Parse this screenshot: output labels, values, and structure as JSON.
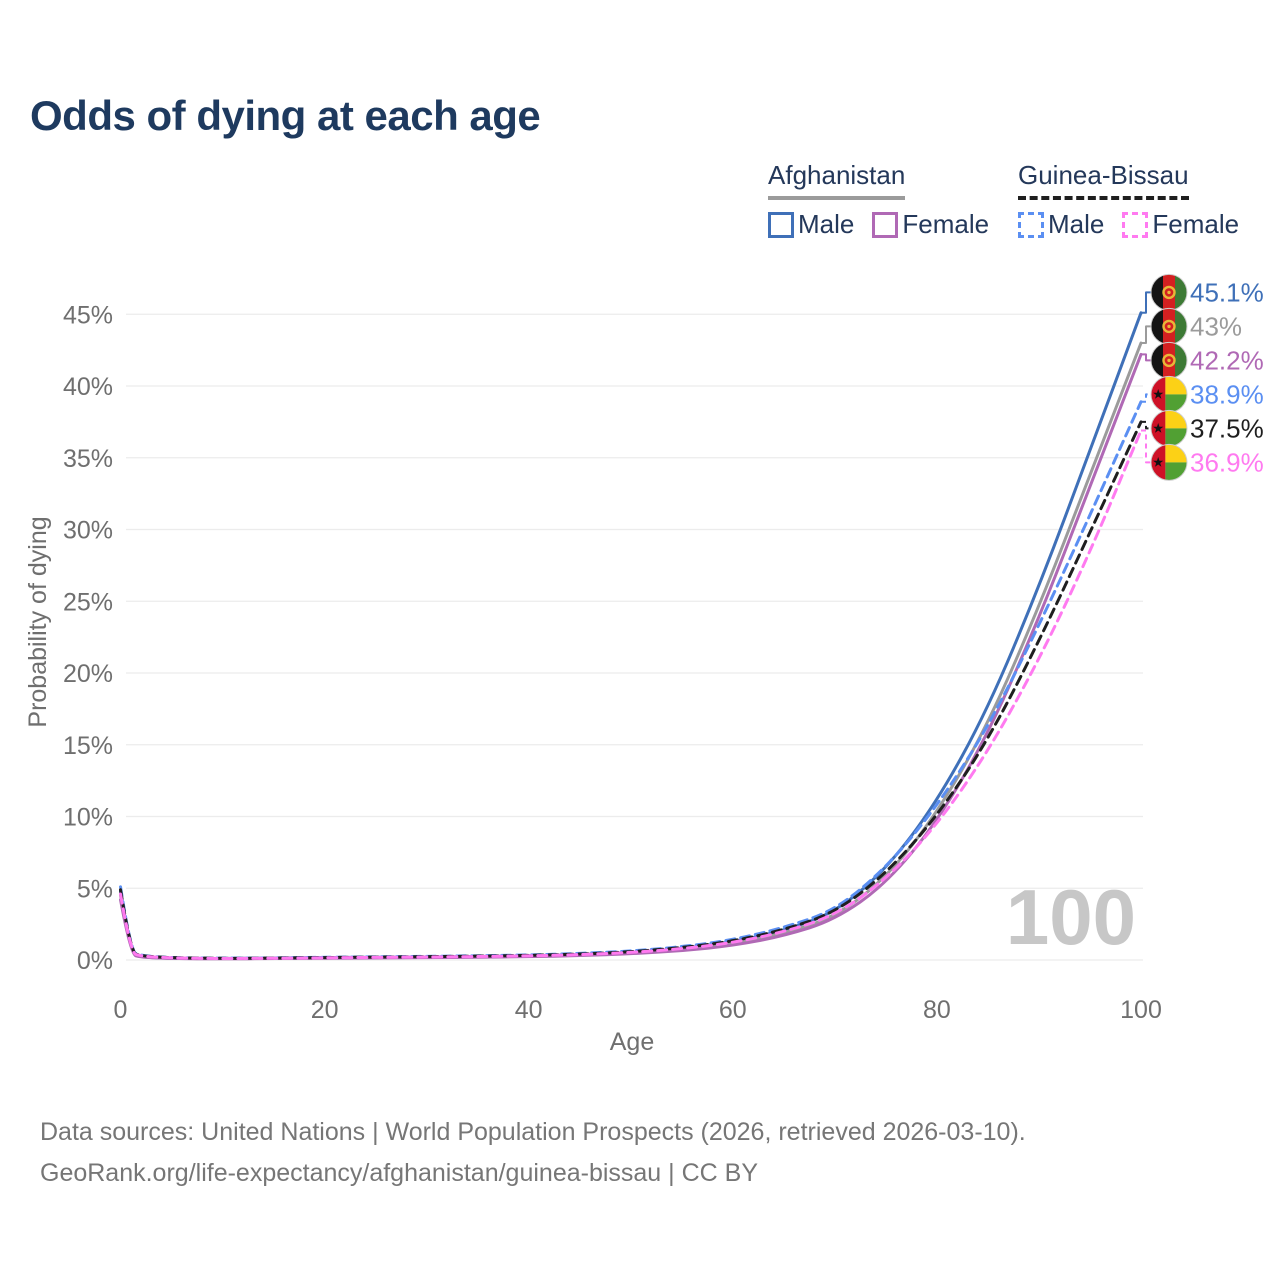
{
  "title": "Odds of dying at each age",
  "legend": {
    "afghanistan": {
      "label": "Afghanistan",
      "male_label": "Male",
      "female_label": "Female"
    },
    "guinea_bissau": {
      "label": "Guinea-Bissau",
      "male_label": "Male",
      "female_label": "Female"
    }
  },
  "footer": {
    "line1": "Data sources: United Nations | World Population Prospects (2026, retrieved 2026-03-10).",
    "line2": "GeoRank.org/life-expectancy/afghanistan/guinea-bissau | CC BY"
  },
  "chart_data": {
    "type": "line",
    "title": "Odds of dying at each age",
    "xlabel": "Age",
    "ylabel": "Probability of dying",
    "x_ticks": [
      0,
      20,
      40,
      60,
      80,
      100
    ],
    "y_ticks": [
      0,
      5,
      10,
      15,
      20,
      25,
      30,
      35,
      40,
      45
    ],
    "y_tick_suffix": "%",
    "xlim": [
      0,
      100
    ],
    "ylim": [
      0,
      47
    ],
    "grid": "horizontal",
    "legend_position": "top-right",
    "watermark": "100",
    "ages": [
      0,
      1,
      2,
      5,
      10,
      15,
      20,
      25,
      30,
      35,
      40,
      45,
      50,
      55,
      60,
      65,
      70,
      75,
      80,
      85,
      90,
      95,
      100
    ],
    "series": [
      {
        "id": "afghanistan-male",
        "name": "Afghanistan Male",
        "country": "afghanistan",
        "sex": "Male",
        "style": "solid",
        "color": "#3f70b8",
        "end_label": "45.1%",
        "end_value": 45.1,
        "values": [
          4.8,
          0.45,
          0.22,
          0.12,
          0.1,
          0.13,
          0.17,
          0.19,
          0.21,
          0.24,
          0.29,
          0.37,
          0.52,
          0.78,
          1.25,
          2.05,
          3.3,
          6.3,
          11.0,
          17.5,
          26.0,
          35.5,
          45.1
        ]
      },
      {
        "id": "afghanistan-both",
        "name": "Afghanistan Both sexes",
        "country": "afghanistan",
        "sex": "Both",
        "style": "solid",
        "color": "#9b9b9b",
        "end_label": "43%",
        "end_value": 43.0,
        "values": [
          4.5,
          0.42,
          0.2,
          0.11,
          0.09,
          0.11,
          0.14,
          0.16,
          0.18,
          0.21,
          0.26,
          0.33,
          0.47,
          0.71,
          1.12,
          1.85,
          3.0,
          5.7,
          10.2,
          16.4,
          24.6,
          33.8,
          43.0
        ]
      },
      {
        "id": "afghanistan-female",
        "name": "Afghanistan Female",
        "country": "afghanistan",
        "sex": "Female",
        "style": "solid",
        "color": "#b069b5",
        "end_label": "42.2%",
        "end_value": 42.2,
        "values": [
          4.2,
          0.4,
          0.19,
          0.1,
          0.08,
          0.1,
          0.12,
          0.14,
          0.16,
          0.19,
          0.23,
          0.3,
          0.43,
          0.64,
          1.0,
          1.68,
          2.8,
          5.3,
          9.6,
          15.7,
          23.8,
          33.0,
          42.2
        ]
      },
      {
        "id": "guinea-bissau-male",
        "name": "Guinea-Bissau Male",
        "country": "guinea-bissau",
        "sex": "Male",
        "style": "dashed",
        "color": "#5b8ff2",
        "end_label": "38.9%",
        "end_value": 38.9,
        "values": [
          5.1,
          0.6,
          0.3,
          0.16,
          0.12,
          0.14,
          0.19,
          0.22,
          0.25,
          0.29,
          0.35,
          0.45,
          0.62,
          0.92,
          1.4,
          2.25,
          3.45,
          6.4,
          10.7,
          16.2,
          23.3,
          31.0,
          38.9
        ]
      },
      {
        "id": "guinea-bissau-both",
        "name": "Guinea-Bissau Both sexes",
        "country": "guinea-bissau",
        "sex": "Both",
        "style": "dashed",
        "color": "#1f1f1f",
        "end_label": "37.5%",
        "end_value": 37.5,
        "values": [
          4.9,
          0.55,
          0.28,
          0.15,
          0.11,
          0.13,
          0.17,
          0.2,
          0.23,
          0.27,
          0.32,
          0.41,
          0.57,
          0.85,
          1.3,
          2.1,
          3.3,
          6.0,
          10.0,
          15.3,
          22.2,
          29.8,
          37.5
        ]
      },
      {
        "id": "guinea-bissau-female",
        "name": "Guinea-Bissau Female",
        "country": "guinea-bissau",
        "sex": "Female",
        "style": "dashed",
        "color": "#ff7af0",
        "end_label": "36.9%",
        "end_value": 36.9,
        "values": [
          4.6,
          0.52,
          0.26,
          0.14,
          0.1,
          0.12,
          0.15,
          0.18,
          0.21,
          0.24,
          0.29,
          0.37,
          0.52,
          0.78,
          1.2,
          1.95,
          3.1,
          5.6,
          9.4,
          14.5,
          20.9,
          28.4,
          36.9
        ]
      }
    ],
    "flag_colors": {
      "afghanistan": {
        "black": "#141414",
        "red": "#d32021",
        "green": "#3d7a35",
        "emblem": "#e8b838"
      },
      "guinea-bissau": {
        "red": "#ce1126",
        "yellow": "#fcd116",
        "green": "#51a033",
        "star": "#111111"
      }
    },
    "styling": {
      "gridline_color": "#ececec",
      "axis_text_color": "#6f6f6f",
      "watermark_color": "#c7c7c7",
      "title_color": "#1e3a5f"
    }
  }
}
